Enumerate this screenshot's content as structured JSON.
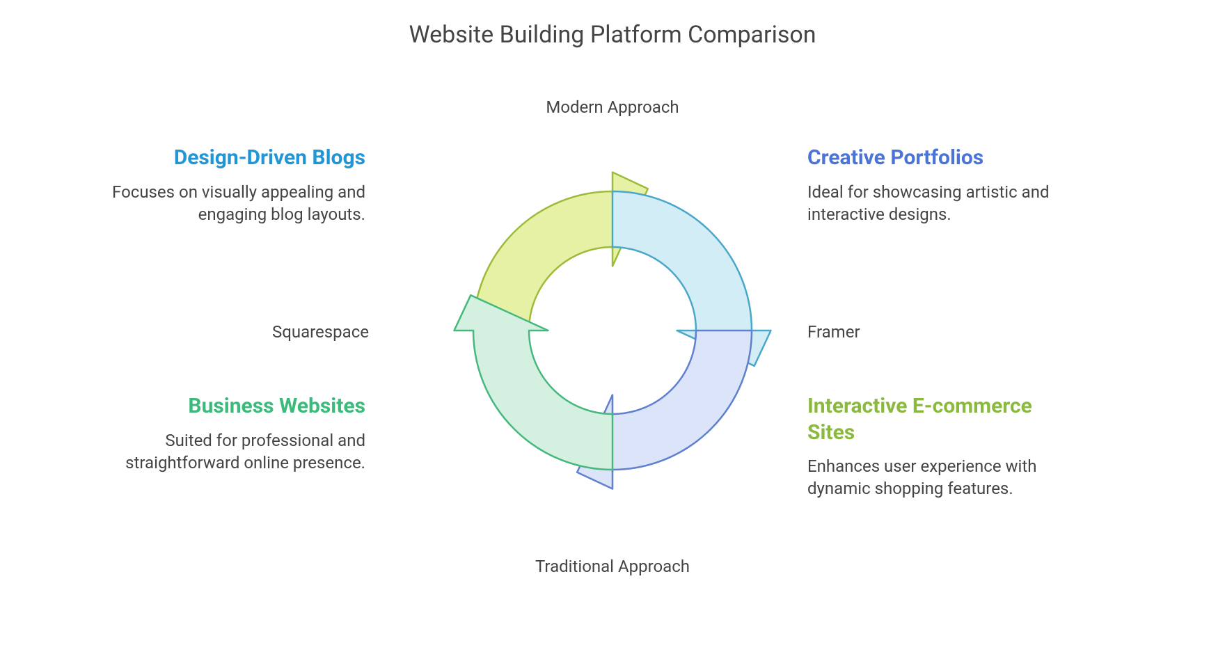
{
  "title": "Website Building Platform Comparison",
  "axes": {
    "top": "Modern Approach",
    "bottom": "Traditional Approach",
    "left": "Squarespace",
    "right": "Framer"
  },
  "quadrants": {
    "top_left": {
      "title": "Design-Driven Blogs",
      "desc": "Focuses on visually appealing and engaging blog layouts.",
      "title_color": "#2196d6"
    },
    "top_right": {
      "title": "Creative Portfolios",
      "desc": "Ideal for showcasing artistic and interactive designs.",
      "title_color": "#4a74d8"
    },
    "bottom_left": {
      "title": "Business Websites",
      "desc": "Suited for professional and straightforward online presence.",
      "title_color": "#3cba7b"
    },
    "bottom_right": {
      "title": "Interactive E-commerce Sites",
      "desc": "Enhances user experience with dynamic shopping features.",
      "title_color": "#8bb93f"
    }
  },
  "diagram": {
    "type": "circular-arrow-quadrant",
    "outer_radius": 200,
    "inner_radius": 120,
    "arrow_head_extent": 50,
    "segments": [
      {
        "name": "top-left",
        "fill": "#e6f1a5",
        "stroke": "#9cbb3a",
        "title_ref": "top_left"
      },
      {
        "name": "top-right",
        "fill": "#d2edf6",
        "stroke": "#4aa7c9",
        "title_ref": "top_right"
      },
      {
        "name": "bottom-right",
        "fill": "#dbe4f8",
        "stroke": "#5f7fcf",
        "title_ref": "bottom_right"
      },
      {
        "name": "bottom-left",
        "fill": "#d3f0e1",
        "stroke": "#46b87e",
        "title_ref": "bottom_left"
      }
    ],
    "stroke_width": 2.5,
    "background_color": "#ffffff"
  },
  "typography": {
    "title_fontsize": 34,
    "axis_fontsize": 24,
    "quad_title_fontsize": 30,
    "quad_desc_fontsize": 24,
    "body_text_color": "#444444"
  }
}
